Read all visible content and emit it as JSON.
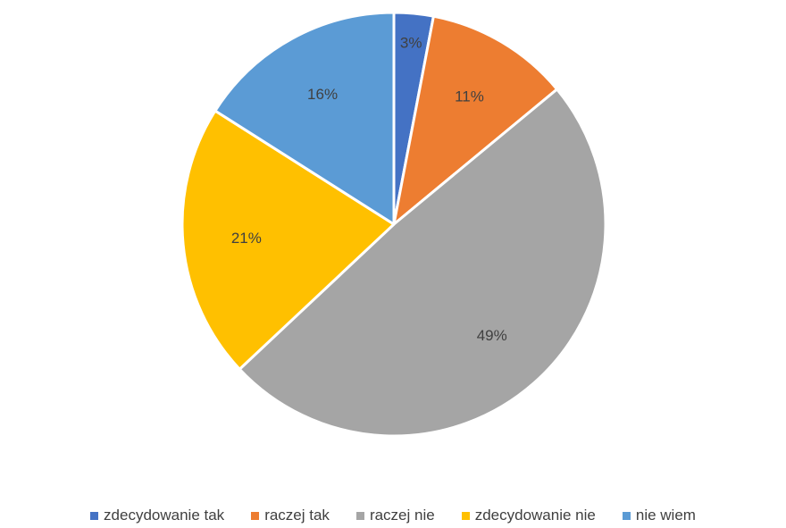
{
  "chart_data": {
    "type": "pie",
    "title": "",
    "start_angle_deg": 0,
    "direction": "clockwise",
    "legend_position": "bottom",
    "slices": [
      {
        "label": "zdecydowanie tak",
        "value": 3,
        "display": "3%",
        "color": "#4472C4"
      },
      {
        "label": "raczej tak",
        "value": 11,
        "display": "11%",
        "color": "#ED7D31"
      },
      {
        "label": "raczej nie",
        "value": 49,
        "display": "49%",
        "color": "#A5A5A5"
      },
      {
        "label": "zdecydowanie nie",
        "value": 21,
        "display": "21%",
        "color": "#FFC000"
      },
      {
        "label": "nie wiem",
        "value": 16,
        "display": "16%",
        "color": "#5B9BD5"
      }
    ]
  }
}
